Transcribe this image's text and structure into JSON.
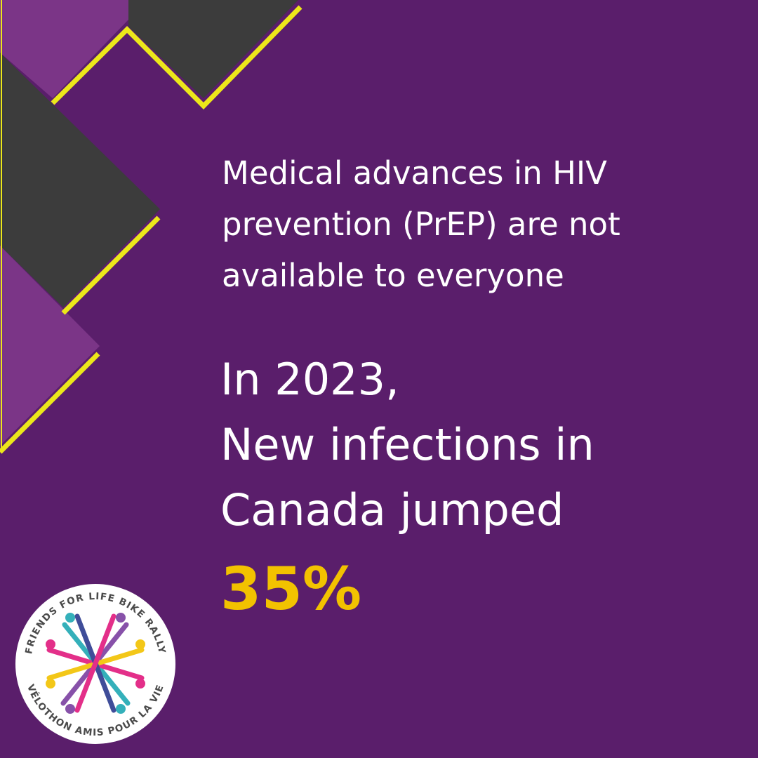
{
  "message": {
    "lines": [
      "Medical advances in HIV",
      "prevention (PrEP) are not",
      "available to everyone"
    ]
  },
  "headline": {
    "lines": [
      "In 2023,",
      "New infections in",
      "Canada jumped"
    ],
    "highlight": "35%"
  },
  "logo": {
    "top_text": "FRIENDS FOR LIFE BIKE RALLY",
    "bottom_text": "VÉLOTHON AMIS POUR LA VIE"
  }
}
